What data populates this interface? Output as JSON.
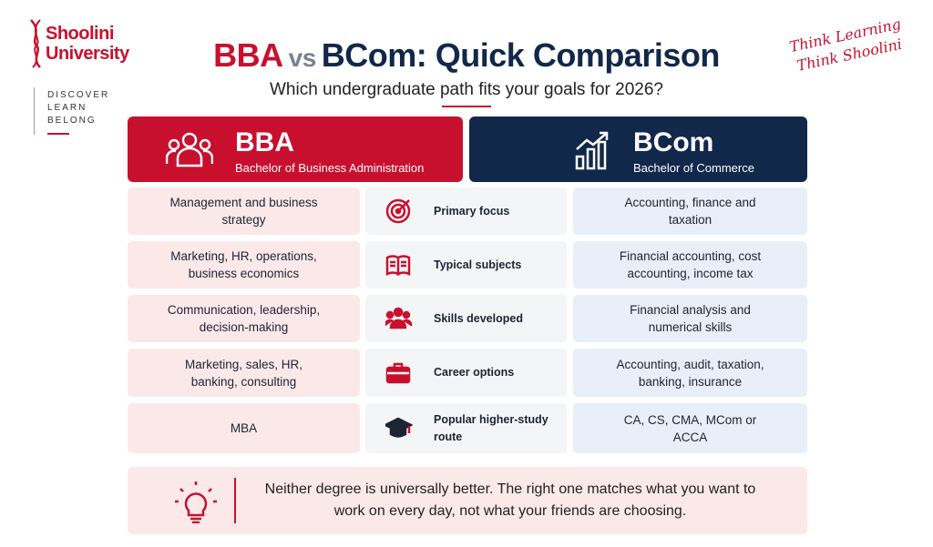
{
  "header": {
    "logo": "Shoolini University",
    "tagline": [
      "DISCOVER",
      "LEARN",
      "BELONG"
    ],
    "script": [
      "Think Learning",
      "Think Shoolini"
    ],
    "title": {
      "left": "BBA",
      "vs": "vs",
      "right": "BCom: Quick Comparison"
    },
    "subtitle": "Which undergraduate path fits your goals for 2026?"
  },
  "columns": {
    "left": {
      "title": "BBA",
      "subtitle": "Bachelor of Business Administration"
    },
    "right": {
      "title": "BCom",
      "subtitle": "Bachelor of Commerce"
    }
  },
  "rows": [
    {
      "bba": "Management and business strategy",
      "aspect": "Primary focus",
      "bcom": "Accounting, finance and taxation"
    },
    {
      "bba": "Marketing, HR, operations, business economics",
      "aspect": "Typical subjects",
      "bcom": "Financial accounting, cost accounting, income tax"
    },
    {
      "bba": "Communication, leadership, decision-making",
      "aspect": "Skills developed",
      "bcom": "Financial analysis and numerical skills"
    },
    {
      "bba": "Marketing, sales, HR, banking, consulting",
      "aspect": "Career options",
      "bcom": "Accounting, audit, taxation, banking, insurance"
    },
    {
      "bba": "MBA",
      "aspect": "Popular higher-study route",
      "bcom": "CA, CS, CMA, MCom or ACCA"
    }
  ],
  "note": "Neither degree is universally better. The right one matches what you want to work on every day, not what your friends are choosing."
}
